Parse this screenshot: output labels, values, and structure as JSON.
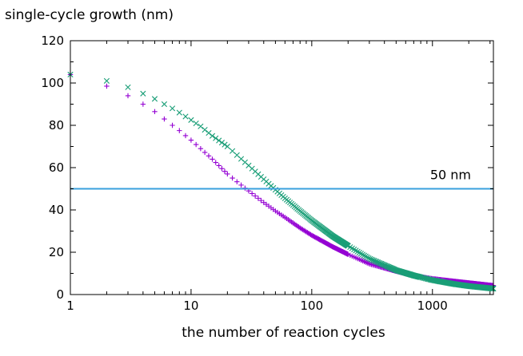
{
  "chart_data": {
    "type": "scatter",
    "title": "",
    "ylabel": "single-cycle growth (nm)",
    "xlabel": "the number of reaction cycles",
    "xscale": "log",
    "xlim": [
      1,
      3200
    ],
    "ylim": [
      0,
      120
    ],
    "grid": false,
    "legend": "none",
    "xticks": [
      {
        "value": 1,
        "label": "1"
      },
      {
        "value": 10,
        "label": "10"
      },
      {
        "value": 100,
        "label": "100"
      },
      {
        "value": 1000,
        "label": "1000"
      }
    ],
    "yticks": [
      {
        "value": 0,
        "label": "0"
      },
      {
        "value": 20,
        "label": "20"
      },
      {
        "value": 40,
        "label": "40"
      },
      {
        "value": 60,
        "label": "60"
      },
      {
        "value": 80,
        "label": "80"
      },
      {
        "value": 100,
        "label": "100"
      },
      {
        "value": 120,
        "label": "120"
      }
    ],
    "series": [
      {
        "name": "series-plus",
        "marker": "+",
        "color": "#9400D3",
        "x": [
          1,
          2,
          3,
          4,
          5,
          6,
          7,
          8,
          10,
          12,
          15,
          20,
          25,
          30,
          40,
          50,
          60,
          80,
          100,
          150,
          200,
          300,
          500,
          700,
          1000,
          1500,
          2000,
          3200
        ],
        "y": [
          104,
          98.5,
          94,
          90,
          86.5,
          83,
          80,
          77.5,
          73,
          69,
          64,
          57,
          52.5,
          49,
          43.5,
          39.5,
          36.5,
          31.5,
          28,
          22.5,
          19,
          14.5,
          11,
          9,
          7.5,
          6.3,
          5.5,
          4.2
        ]
      },
      {
        "name": "series-x",
        "marker": "x",
        "color": "#1A9E77",
        "x": [
          1,
          2,
          3,
          4,
          5,
          6,
          7,
          8,
          10,
          12,
          15,
          20,
          25,
          30,
          40,
          50,
          60,
          80,
          100,
          150,
          200,
          300,
          500,
          700,
          1000,
          1500,
          2000,
          3200
        ],
        "y": [
          104,
          101,
          98,
          95,
          92.5,
          90,
          88,
          86,
          82.5,
          79.5,
          75,
          70,
          65,
          61,
          54.5,
          49.5,
          45.5,
          39.5,
          35,
          27.5,
          23,
          17,
          11.5,
          9,
          6.8,
          5,
          4,
          2.8
        ]
      }
    ],
    "hline": {
      "value": 50,
      "color": "#3AA0DD",
      "label": "50 nm"
    }
  }
}
